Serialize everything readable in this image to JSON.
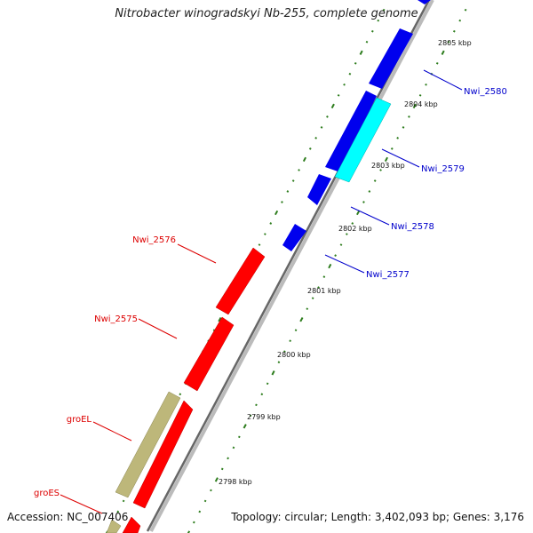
{
  "title": "Nitrobacter winogradskyi Nb-255, complete genome",
  "footer": {
    "accession": "Accession: NC_007406",
    "summary": "Topology: circular; Length: 3,402,093 bp; Genes: 3,176"
  },
  "colors": {
    "backbone_dark": "#555555",
    "backbone_light": "#bbbbbb",
    "tick": "#2e7d1e",
    "forward_gene": "#0000ee",
    "forward_highlight": "#00ffff",
    "reverse_gene": "#ff0000",
    "reverse_other": "#bdb77a",
    "forward_label": "#0000cc",
    "reverse_label": "#dd0000"
  },
  "scale": {
    "tick_labels": [
      "2798 kbp",
      "2799 kbp",
      "2800 kbp",
      "2801 kbp",
      "2802 kbp",
      "2803 kbp",
      "2804 kbp",
      "2805 kbp"
    ]
  },
  "forward_labels": [
    "Nwi_2580",
    "Nwi_2579",
    "Nwi_2578",
    "Nwi_2577"
  ],
  "reverse_labels": [
    "Nwi_2576",
    "Nwi_2575",
    "groEL",
    "groES"
  ]
}
